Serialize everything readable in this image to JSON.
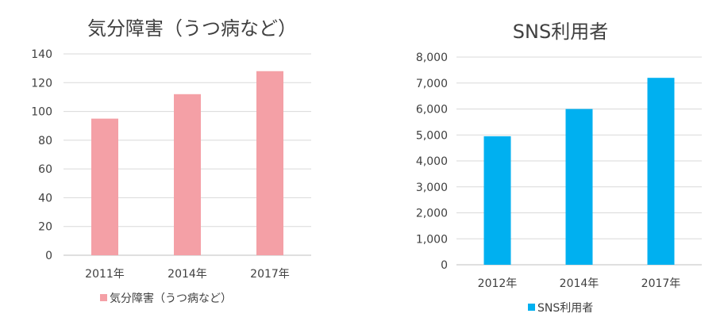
{
  "chart_data": [
    {
      "type": "bar",
      "title": "気分障害（うつ病など）",
      "categories": [
        "2011年",
        "2014年",
        "2017年"
      ],
      "series": [
        {
          "name": "気分障害（うつ病など）",
          "values": [
            95,
            112,
            128
          ],
          "color": "#f4a0a6"
        }
      ],
      "ylim": [
        0,
        140
      ],
      "yticks": [
        "0",
        "20",
        "40",
        "60",
        "80",
        "100",
        "120",
        "140"
      ],
      "grid": true,
      "legend": "bottom"
    },
    {
      "type": "bar",
      "title": "SNS利用者",
      "categories": [
        "2012年",
        "2014年",
        "2017年"
      ],
      "series": [
        {
          "name": "SNS利用者",
          "values": [
            4950,
            6000,
            7200
          ],
          "color": "#00b0f0"
        }
      ],
      "ylim": [
        0,
        8000
      ],
      "yticks": [
        "0",
        "1,000",
        "2,000",
        "3,000",
        "4,000",
        "5,000",
        "6,000",
        "7,000",
        "8,000"
      ],
      "grid": true,
      "legend": "bottom"
    }
  ]
}
